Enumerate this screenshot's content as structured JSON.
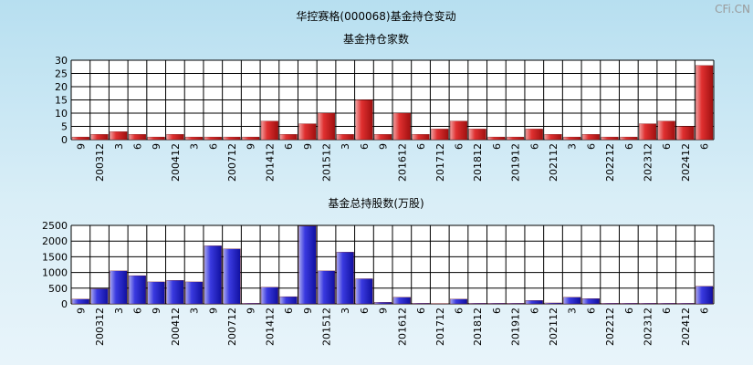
{
  "title": "华控赛格(000068)基金持仓变动",
  "watermark": "CFi.CN",
  "colors": {
    "bar_red": "#d42a2a",
    "bar_blue": "#2b2bd6",
    "grid": "#000000",
    "plot_bg": "#ffffff"
  },
  "chart_data": [
    {
      "type": "bar",
      "title": "基金持仓家数",
      "categories": [
        "9",
        "200312",
        "3",
        "6",
        "9",
        "200412",
        "3",
        "6",
        "200712",
        "9",
        "201412",
        "6",
        "9",
        "201512",
        "3",
        "6",
        "9",
        "201612",
        "6",
        "201712",
        "6",
        "201812",
        "6",
        "201912",
        "6",
        "202112",
        "3",
        "6",
        "202212",
        "6",
        "202312",
        "6",
        "202412",
        "6"
      ],
      "tick_labels": [
        "9",
        "200312",
        "3",
        "6",
        "9",
        "200412",
        "3",
        "6",
        "200712",
        "9",
        "201412",
        "6",
        "9",
        "201512",
        "3",
        "6",
        "9",
        "201612",
        "6",
        "201712",
        "6",
        "201812",
        "6",
        "201912",
        "6",
        "202112",
        "3",
        "6",
        "202212",
        "6",
        "202312",
        "6",
        "202412",
        "6"
      ],
      "values": [
        1,
        2,
        3,
        2,
        1,
        2,
        1,
        1,
        1,
        1,
        7,
        2,
        6,
        10,
        2,
        15,
        2,
        10,
        2,
        4,
        7,
        4,
        1,
        1,
        4,
        2,
        1,
        2,
        1,
        1,
        6,
        7,
        5,
        28
      ],
      "ylim": [
        0,
        30
      ],
      "yticks": [
        0,
        5,
        10,
        15,
        20,
        25,
        30
      ],
      "grid": true
    },
    {
      "type": "bar",
      "title": "基金总持股数(万股)",
      "categories": [
        "9",
        "200312",
        "3",
        "6",
        "9",
        "200412",
        "3",
        "9",
        "200712",
        "9",
        "201412",
        "6",
        "9",
        "201512",
        "3",
        "6",
        "9",
        "201612",
        "6",
        "201712",
        "6",
        "201812",
        "6",
        "201912",
        "6",
        "202112",
        "3",
        "6",
        "202212",
        "6",
        "202312",
        "6",
        "202412",
        "6"
      ],
      "tick_labels": [
        "9",
        "200312",
        "3",
        "6",
        "9",
        "200412",
        "3",
        "9",
        "200712",
        "9",
        "201412",
        "6",
        "9",
        "201512",
        "3",
        "6",
        "9",
        "201612",
        "6",
        "201712",
        "6",
        "201812",
        "6",
        "201912",
        "6",
        "202112",
        "3",
        "6",
        "202212",
        "6",
        "202312",
        "6",
        "202412",
        "6"
      ],
      "values": [
        150,
        480,
        1050,
        900,
        700,
        750,
        700,
        1850,
        1750,
        20,
        530,
        230,
        2480,
        1050,
        1650,
        800,
        50,
        210,
        20,
        10,
        150,
        20,
        20,
        20,
        110,
        30,
        210,
        170,
        20,
        20,
        20,
        20,
        20,
        560
      ],
      "ylim": [
        0,
        2500
      ],
      "yticks": [
        0,
        500,
        1000,
        1500,
        2000,
        2500
      ],
      "grid": true
    }
  ]
}
